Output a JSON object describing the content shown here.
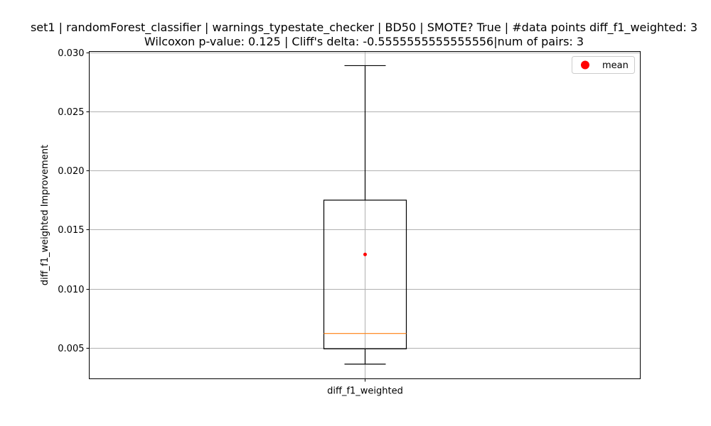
{
  "chart_data": {
    "type": "box",
    "title_line1": "set1 | randomForest_classifier | warnings_typestate_checker | BD50 | SMOTE? True | #data points diff_f1_weighted: 3",
    "title_line2": "Wilcoxon p-value: 0.125 | Cliff's delta: -0.5555555555555556|num of pairs: 3",
    "xlabel": "",
    "ylabel": "diff_f1_weighted Improvement",
    "categories": [
      "diff_f1_weighted"
    ],
    "ylim": [
      0.00236,
      0.0301
    ],
    "yticks": [
      0.005,
      0.01,
      0.015,
      0.02,
      0.025,
      0.03
    ],
    "ytick_labels": [
      "0.005",
      "0.010",
      "0.015",
      "0.020",
      "0.025",
      "0.030"
    ],
    "grid": true,
    "box": {
      "whisker_low": 0.0036,
      "q1": 0.0049,
      "median": 0.0062,
      "q3": 0.0175,
      "whisker_high": 0.0289,
      "mean": 0.0129
    },
    "legend": {
      "position": "top-right",
      "entries": [
        {
          "label": "mean",
          "color": "#ff0000"
        }
      ]
    },
    "colors": {
      "box": "#000000",
      "median": "#ff7f0e",
      "mean": "#ff0000",
      "grid": "#b0b0b0"
    }
  }
}
